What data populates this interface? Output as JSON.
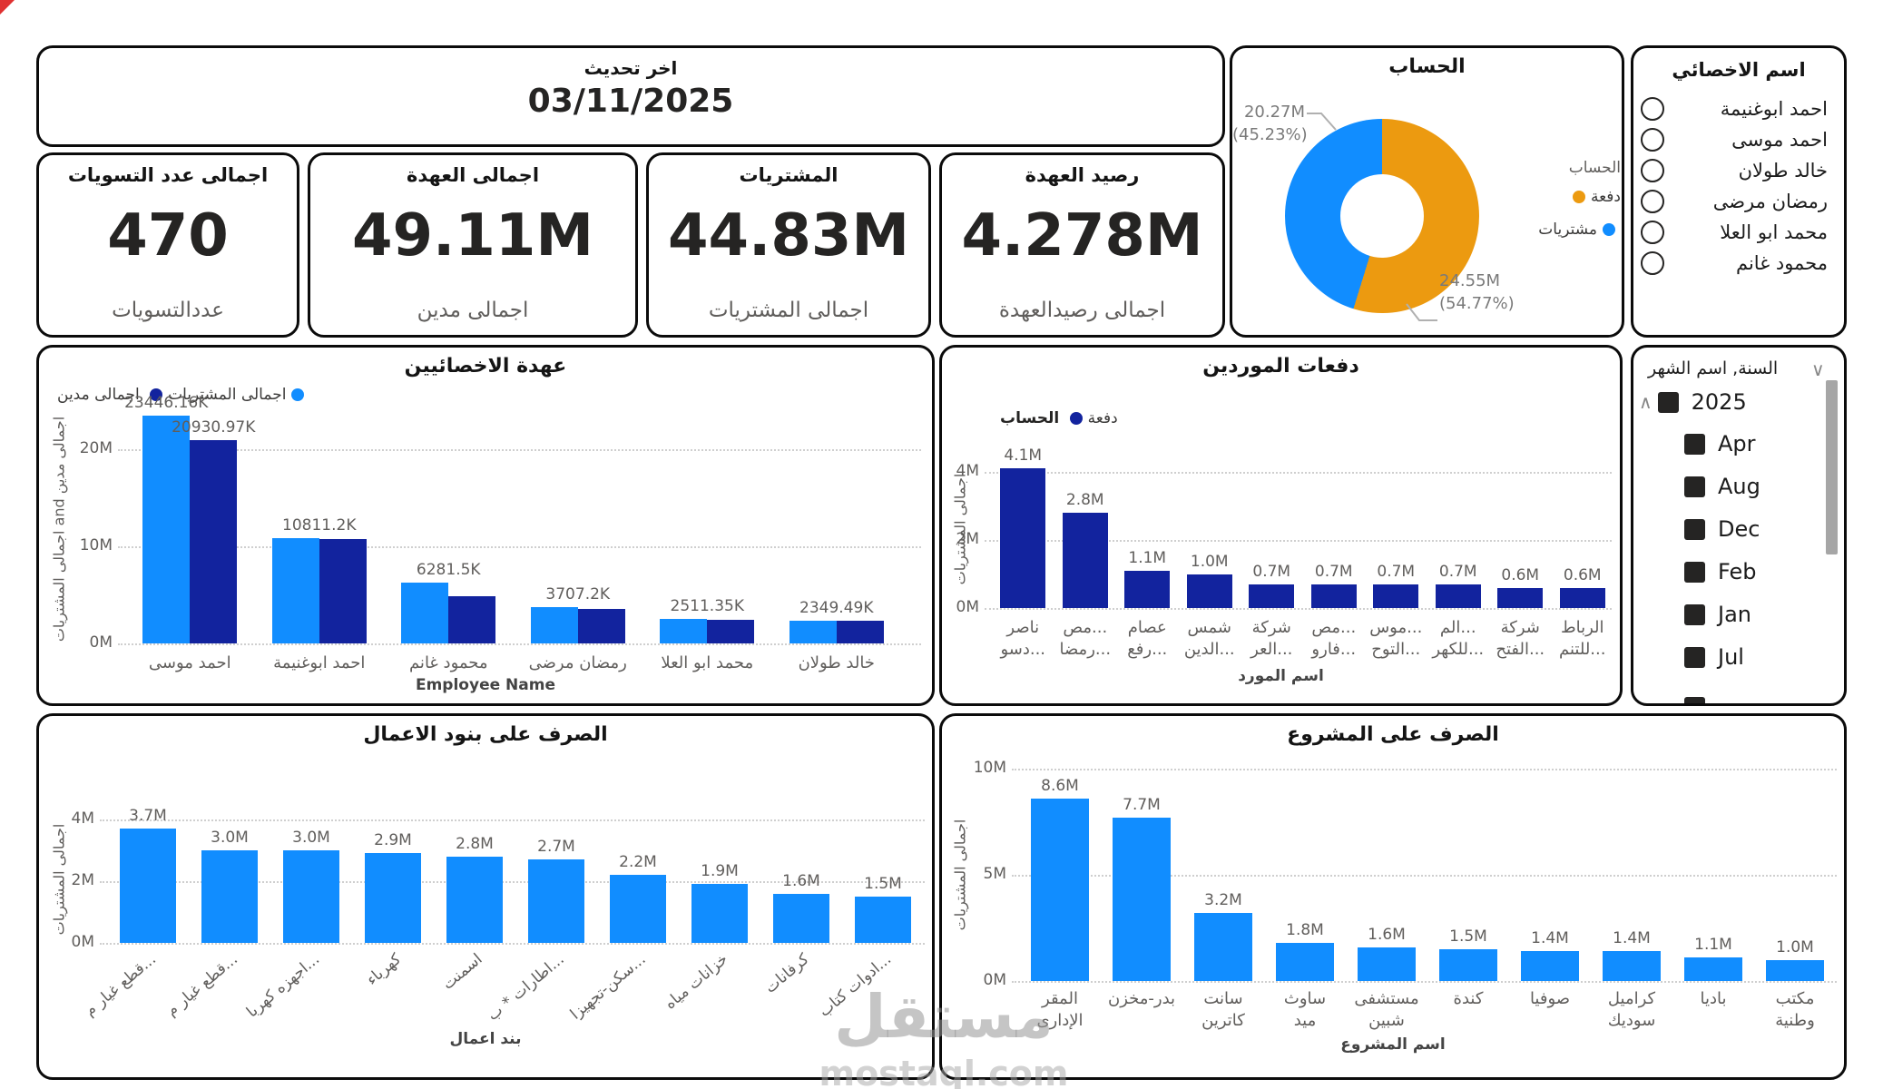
{
  "page": {
    "last_update": {
      "title": "اخر تحديث",
      "date": "03/11/2025"
    },
    "watermark": {
      "arabic": "مستقل",
      "latin": "mostaql.com"
    }
  },
  "kpis": [
    {
      "title": "اجمالى عدد التسويات",
      "value": "470",
      "subtitle": "عددالتسويات"
    },
    {
      "title": "اجمالى العهدة",
      "value": "49.11M",
      "subtitle": "اجمالى مدين"
    },
    {
      "title": "المشتريات",
      "value": "44.83M",
      "subtitle": "اجمالى المشتريات"
    },
    {
      "title": "رصيد العهدة",
      "value": "4.278M",
      "subtitle": "اجمالى رصيدالعهدة"
    }
  ],
  "specialist_slicer": {
    "title": "اسم الاخصائي",
    "items": [
      "احمد ابوغنيمة",
      "احمد موسى",
      "خالد طولان",
      "رمضان مرضى",
      "محمد ابو العلا",
      "محمود غانم"
    ]
  },
  "month_slicer": {
    "title": "السنة, اسم الشهر",
    "year": "2025",
    "months": [
      "Apr",
      "Aug",
      "Dec",
      "Feb",
      "Jan",
      "Jul"
    ]
  },
  "chart_data": [
    {
      "id": "account-donut",
      "type": "pie",
      "title": "الحساب",
      "legend_title": "الحساب",
      "legend_position": "right",
      "slices": [
        {
          "label": "دفعة",
          "value_m": 24.55,
          "pct": 54.77,
          "callout_value": "24.55M",
          "callout_pct": "(54.77%)",
          "color": "#EC9A10"
        },
        {
          "label": "مشتريات",
          "value_m": 20.27,
          "pct": 45.23,
          "callout_value": "20.27M",
          "callout_pct": "(45.23%)",
          "color": "#118DFF"
        }
      ]
    },
    {
      "id": "custody",
      "type": "bar",
      "title": "عهدة الاخصائيين",
      "legend": [
        {
          "label": "اجمالى مدين",
          "color": "#118DFF"
        },
        {
          "label": "اجمالى المشتريات",
          "color": "#12239E"
        }
      ],
      "categories": [
        "احمد موسى",
        "احمد ابوغنيمة",
        "محمود غانم",
        "رمضان مرضى",
        "محمد ابو العلا",
        "خالد طولان"
      ],
      "series": [
        {
          "name": "اجمالى مدين",
          "color": "#118DFF",
          "values_m": [
            23.446,
            10.811,
            6.281,
            3.707,
            2.511,
            2.349
          ]
        },
        {
          "name": "اجمالى المشتريات",
          "color": "#12239E",
          "values_m": [
            20.931,
            10.75,
            4.9,
            3.58,
            2.45,
            2.34
          ]
        }
      ],
      "data_labels": [
        [
          "23446.16K",
          "20930.97K"
        ],
        [
          "10811.2K"
        ],
        [
          "6281.5K"
        ],
        [
          "3707.2K"
        ],
        [
          "2511.35K"
        ],
        [
          "2349.49K"
        ]
      ],
      "yticks_m": [
        0,
        10,
        20
      ],
      "ytick_labels": [
        "0M",
        "10M",
        "20M"
      ],
      "ylim_m": [
        0,
        25
      ],
      "ylabel": "اجمالى المشتريات and اجمالى مدين",
      "xlabel": "Employee Name",
      "grid": "dotted"
    },
    {
      "id": "suppliers",
      "type": "bar",
      "title": "دفعات الموردين",
      "legend_title": "الحساب",
      "legend": [
        {
          "label": "دفعة",
          "color": "#12239E"
        }
      ],
      "categories": [
        [
          "ناصر",
          "...دسو"
        ],
        [
          "...مص",
          "...رمضا"
        ],
        [
          "عصام",
          "...رفع"
        ],
        [
          "شمس",
          "...الدين"
        ],
        [
          "شركة",
          "...العر"
        ],
        [
          "...مص",
          "...فارو"
        ],
        [
          "...موس",
          "...التوح"
        ],
        [
          "...الم",
          "...للكهر"
        ],
        [
          "شركة",
          "...الفتح"
        ],
        [
          "الرباط",
          "...للتنم"
        ]
      ],
      "values_m": [
        4.1,
        2.8,
        1.1,
        1.0,
        0.7,
        0.7,
        0.7,
        0.7,
        0.6,
        0.6
      ],
      "data_labels": [
        "4.1M",
        "2.8M",
        "1.1M",
        "1.0M",
        "0.7M",
        "0.7M",
        "0.7M",
        "0.7M",
        "0.6M",
        "0.6M"
      ],
      "yticks_m": [
        0,
        2,
        4
      ],
      "ytick_labels": [
        "0M",
        "2M",
        "4M"
      ],
      "ylim_m": [
        0,
        4.6
      ],
      "ylabel": "اجمالى المشتريات",
      "xlabel": "اسم المورد",
      "color": "#12239E",
      "grid": "dotted"
    },
    {
      "id": "works",
      "type": "bar",
      "title": "الصرف على بنود الاعمال",
      "categories": [
        "...قطع غيار م",
        "...قطع غيار م",
        "...اجهزه كهربا",
        "كهرباء",
        "اسمنت",
        "...اطارات * ب",
        "...سكن-تجهيزا",
        "خزانات مياه",
        "كرفانات",
        "...ادوات كتاب"
      ],
      "values_m": [
        3.7,
        3.0,
        3.0,
        2.9,
        2.8,
        2.7,
        2.2,
        1.9,
        1.6,
        1.5
      ],
      "data_labels": [
        "3.7M",
        "3.0M",
        "3.0M",
        "2.9M",
        "2.8M",
        "2.7M",
        "2.2M",
        "1.9M",
        "1.6M",
        "1.5M"
      ],
      "yticks_m": [
        0,
        2,
        4
      ],
      "ytick_labels": [
        "0M",
        "2M",
        "4M"
      ],
      "ylim_m": [
        0,
        4.3
      ],
      "ylabel": "اجمالى المشتريات",
      "xlabel": "بند اعمال",
      "color": "#118DFF",
      "grid": "dotted"
    },
    {
      "id": "projects",
      "type": "bar",
      "title": "الصرف على المشروع",
      "categories": [
        [
          "المقر",
          "الإدارى"
        ],
        [
          "بدر-مخزن"
        ],
        [
          "سانت",
          "كاترين"
        ],
        [
          "ساوث",
          "ميد"
        ],
        [
          "مستشفى",
          "شبين"
        ],
        [
          "كندة"
        ],
        [
          "صوفيا"
        ],
        [
          "كراميل",
          "سوديك"
        ],
        [
          "باديا"
        ],
        [
          "مكتب",
          "وطنية"
        ]
      ],
      "values_m": [
        8.6,
        7.7,
        3.2,
        1.8,
        1.6,
        1.5,
        1.4,
        1.4,
        1.1,
        1.0
      ],
      "data_labels": [
        "8.6M",
        "7.7M",
        "3.2M",
        "1.8M",
        "1.6M",
        "1.5M",
        "1.4M",
        "1.4M",
        "1.1M",
        "1.0M"
      ],
      "yticks_m": [
        0,
        5,
        10
      ],
      "ytick_labels": [
        "0M",
        "5M",
        "10M"
      ],
      "ylim_m": [
        0,
        10.5
      ],
      "ylabel": "اجمالى المشتريات",
      "xlabel": "اسم المشروع",
      "color": "#118DFF",
      "grid": "dotted"
    }
  ]
}
